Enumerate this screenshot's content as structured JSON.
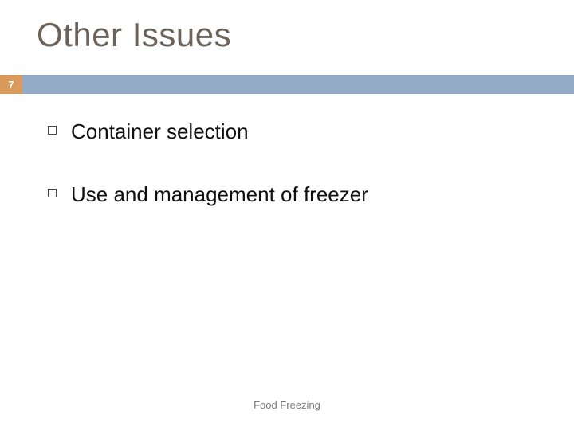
{
  "title": {
    "text": "Other Issues",
    "color": "#6b6259",
    "fontsize": 42
  },
  "accent_bar": {
    "color": "#94abc8",
    "height": 24
  },
  "page_number": {
    "value": "7",
    "bg_color": "#d99a5b",
    "text_color": "#ffffff"
  },
  "bullets": [
    {
      "text": "Container selection"
    },
    {
      "text": "Use and management of freezer"
    }
  ],
  "bullet_style": {
    "marker_border_color": "#444444",
    "text_color": "#101010",
    "fontsize": 26
  },
  "footer": {
    "text": "Food Freezing",
    "color": "#7a7a7a",
    "fontsize": 13
  },
  "background_color": "#ffffff"
}
